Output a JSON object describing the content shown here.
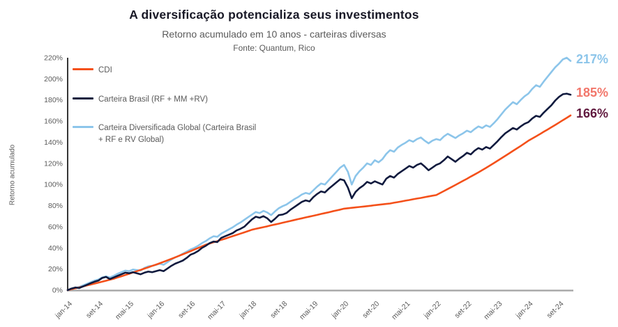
{
  "header": {
    "title": "A diversificação potencializa seus investimentos",
    "subtitle": "Retorno acumulado em 10 anos - carteiras diversas",
    "source": "Fonte: Quantum, Rico"
  },
  "colors": {
    "title_text": "#181826",
    "muted_text": "#5a5a5a",
    "x_axis_line": "#a6a6a6",
    "y_axis_line": "#1f1f1f"
  },
  "chart_data": {
    "type": "line",
    "title": "A diversificação potencializa seus investimentos",
    "subtitle": "Retorno acumulado em 10 anos - carteiras diversas",
    "source": "Fonte: Quantum, Rico",
    "xlabel": "",
    "ylabel": "Retorno acumulado",
    "ylim": [
      0,
      220
    ],
    "y_tick_step": 20,
    "y_tick_suffix": "%",
    "grid": false,
    "legend_position": "upper-left-inside",
    "x_unit": "months since jan-14, one value per month (jan-14 to dez-24)",
    "x_tick_labels": [
      "jan-14",
      "set-14",
      "mai-15",
      "jan-16",
      "set-16",
      "mai-17",
      "jan-18",
      "set-18",
      "mai-19",
      "jan-20",
      "set-20",
      "mai-21",
      "jan-22",
      "set-22",
      "mai-23",
      "jan-24",
      "set-24"
    ],
    "x_tick_month_index": [
      0,
      8,
      16,
      24,
      32,
      40,
      48,
      56,
      64,
      72,
      80,
      88,
      96,
      104,
      112,
      120,
      128
    ],
    "series": [
      {
        "id": "carteira-global",
        "name": "Carteira Diversificada Global (Carteira Brasil + RF e RV Global)",
        "legend_label": "Carteira Diversificada Global (Carteira Brasil\n+ RF e RV Global)",
        "color": "#8cc5ea",
        "end_label": "217%",
        "end_label_color": "#8cc5ea",
        "values": [
          0,
          1.0,
          2.0,
          3.0,
          4.5,
          6.0,
          7.5,
          9.0,
          10.0,
          12.0,
          13.0,
          12.0,
          13.5,
          15.5,
          17.0,
          18.5,
          18.0,
          19.5,
          19.0,
          18.5,
          21.0,
          22.5,
          23.0,
          24.0,
          25.0,
          24.0,
          26.5,
          29.0,
          31.0,
          32.5,
          34.5,
          36.5,
          38.5,
          40.0,
          42.0,
          44.5,
          46.5,
          49.0,
          51.0,
          50.5,
          53.5,
          55.5,
          57.5,
          59.5,
          62.0,
          64.0,
          66.5,
          69.0,
          71.5,
          74.0,
          73.0,
          75.0,
          73.5,
          71.0,
          74.5,
          77.5,
          79.5,
          81.0,
          83.5,
          86.0,
          88.0,
          90.5,
          92.0,
          91.0,
          94.5,
          98.0,
          101.0,
          100.0,
          104.0,
          108.0,
          112.0,
          116.0,
          118.5,
          112.0,
          100.0,
          108.0,
          112.5,
          116.0,
          120.0,
          118.5,
          123.0,
          121.0,
          124.0,
          129.0,
          132.5,
          131.0,
          135.0,
          137.5,
          139.5,
          142.0,
          140.5,
          143.0,
          144.5,
          141.5,
          139.0,
          141.5,
          143.0,
          142.0,
          145.5,
          148.0,
          146.0,
          144.0,
          146.5,
          148.5,
          151.0,
          149.5,
          152.5,
          155.0,
          153.5,
          156.0,
          154.5,
          158.0,
          162.0,
          166.5,
          171.0,
          174.5,
          178.0,
          176.0,
          180.0,
          183.5,
          186.0,
          190.5,
          194.0,
          192.5,
          197.5,
          202.0,
          206.5,
          211.0,
          214.5,
          218.5,
          220.0,
          217.0
        ]
      },
      {
        "id": "cdi",
        "name": "CDI",
        "legend_label": "CDI",
        "color": "#f4501a",
        "end_label": "166%",
        "end_label_color": "#611a3f",
        "values": [
          0,
          0.9,
          1.7,
          2.6,
          3.5,
          4.4,
          5.3,
          6.2,
          7.1,
          8.0,
          8.9,
          9.9,
          10.8,
          12.0,
          13.1,
          14.3,
          15.5,
          16.7,
          17.9,
          19.1,
          20.4,
          21.6,
          22.9,
          24.1,
          25.4,
          26.8,
          28.2,
          29.6,
          31.0,
          32.5,
          33.9,
          35.4,
          36.9,
          38.4,
          39.9,
          41.4,
          43.0,
          44.1,
          45.3,
          46.4,
          47.6,
          48.7,
          49.9,
          51.1,
          52.3,
          53.5,
          54.7,
          55.9,
          57.2,
          58.0,
          58.8,
          59.6,
          60.4,
          61.3,
          62.1,
          62.9,
          63.8,
          64.6,
          65.5,
          66.3,
          67.2,
          68.0,
          68.8,
          69.6,
          70.4,
          71.2,
          72.1,
          72.9,
          73.7,
          74.6,
          75.4,
          76.2,
          77.1,
          77.5,
          77.9,
          78.3,
          78.7,
          79.1,
          79.5,
          79.9,
          80.4,
          80.8,
          81.2,
          81.6,
          82.0,
          82.7,
          83.3,
          84.0,
          84.7,
          85.3,
          86.0,
          86.7,
          87.3,
          88.0,
          88.7,
          89.4,
          90.0,
          91.9,
          93.8,
          95.7,
          97.6,
          99.5,
          101.5,
          103.5,
          105.4,
          107.5,
          109.5,
          111.5,
          113.6,
          115.8,
          118.0,
          120.2,
          122.5,
          124.8,
          127.1,
          129.4,
          131.8,
          134.1,
          136.5,
          138.9,
          141.4,
          143.5,
          145.6,
          147.7,
          149.9,
          152.0,
          154.2,
          156.4,
          158.6,
          160.9,
          163.1,
          165.4
        ]
      },
      {
        "id": "carteira-brasil",
        "name": "Carteira Brasil (RF + MM +RV)",
        "legend_label": "Carteira Brasil (RF + MM +RV)",
        "color": "#0f1a3e",
        "end_label": "185%",
        "end_label_color": "#f2766a",
        "values": [
          0,
          1.5,
          2.5,
          2.0,
          3.5,
          5.0,
          6.5,
          8.0,
          9.0,
          11.5,
          12.5,
          10.5,
          12.0,
          13.5,
          15.0,
          16.5,
          16.0,
          17.0,
          16.0,
          15.0,
          16.5,
          17.5,
          17.0,
          18.0,
          19.0,
          18.0,
          20.5,
          23.0,
          25.0,
          26.5,
          28.0,
          30.5,
          33.5,
          35.0,
          37.0,
          40.0,
          42.0,
          44.5,
          46.0,
          45.5,
          49.5,
          51.0,
          52.5,
          54.0,
          56.5,
          58.0,
          60.0,
          63.5,
          67.0,
          69.5,
          68.5,
          70.0,
          68.0,
          64.5,
          67.5,
          71.0,
          71.5,
          73.0,
          76.0,
          78.5,
          81.0,
          83.5,
          85.0,
          84.0,
          88.0,
          91.0,
          93.5,
          92.5,
          96.0,
          99.0,
          102.0,
          105.0,
          104.0,
          97.0,
          87.0,
          93.0,
          96.5,
          99.0,
          102.5,
          101.0,
          103.0,
          101.5,
          100.0,
          105.5,
          108.0,
          106.5,
          110.0,
          112.5,
          115.0,
          117.5,
          116.0,
          118.5,
          120.0,
          117.0,
          113.5,
          116.0,
          118.5,
          120.0,
          123.0,
          126.5,
          124.0,
          121.5,
          124.5,
          127.0,
          130.0,
          128.5,
          132.0,
          134.5,
          133.0,
          135.5,
          134.0,
          137.5,
          141.0,
          145.0,
          148.5,
          151.0,
          153.5,
          152.0,
          155.0,
          157.5,
          159.0,
          162.5,
          165.0,
          164.0,
          168.0,
          171.5,
          175.0,
          179.5,
          183.0,
          185.5,
          186.0,
          185.0
        ]
      }
    ],
    "legend_order": [
      "cdi",
      "carteira-brasil",
      "carteira-global"
    ]
  }
}
